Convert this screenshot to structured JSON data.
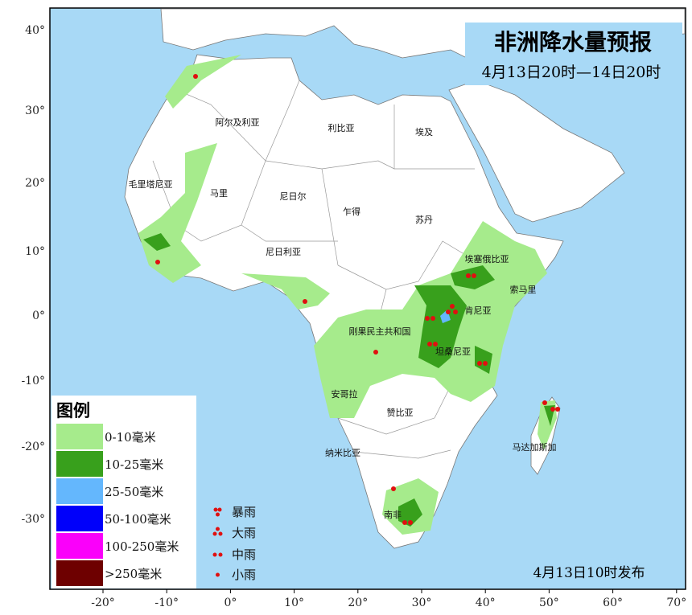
{
  "header": {
    "title": "非洲降水量预报",
    "subtitle": "4月13日20时—14日20时"
  },
  "issue_note": "4月13日10时发布",
  "countries": [
    "阿尔及利亚",
    "利比亚",
    "埃及",
    "毛里塔尼亚",
    "马里",
    "尼日尔",
    "乍得",
    "苏丹",
    "尼日利亚",
    "埃塞俄比亚",
    "索马里",
    "肯尼亚",
    "刚果民主共和国",
    "坦桑尼亚",
    "安哥拉",
    "赞比亚",
    "马达加斯加",
    "纳米比亚",
    "南非"
  ],
  "lat_ticks": [
    "40°",
    "30°",
    "20°",
    "10°",
    "0°",
    "-10°",
    "-20°",
    "-30°"
  ],
  "lon_ticks": [
    "-20°",
    "-10°",
    "0°",
    "10°",
    "20°",
    "30°",
    "40°",
    "50°",
    "60°",
    "70°"
  ],
  "legend": {
    "title": "图例",
    "items": [
      {
        "label": "0-10毫米",
        "color": "#a6eb8c"
      },
      {
        "label": "10-25毫米",
        "color": "#38a01c"
      },
      {
        "label": "25-50毫米",
        "color": "#64b7fd"
      },
      {
        "label": "50-100毫米",
        "color": "#0000fa"
      },
      {
        "label": "100-250毫米",
        "color": "#fa00fa"
      },
      {
        "label": ">250毫米",
        "color": "#6e0000"
      }
    ]
  },
  "rain_legend": [
    "暴雨",
    "大雨",
    "中雨",
    "小雨"
  ]
}
